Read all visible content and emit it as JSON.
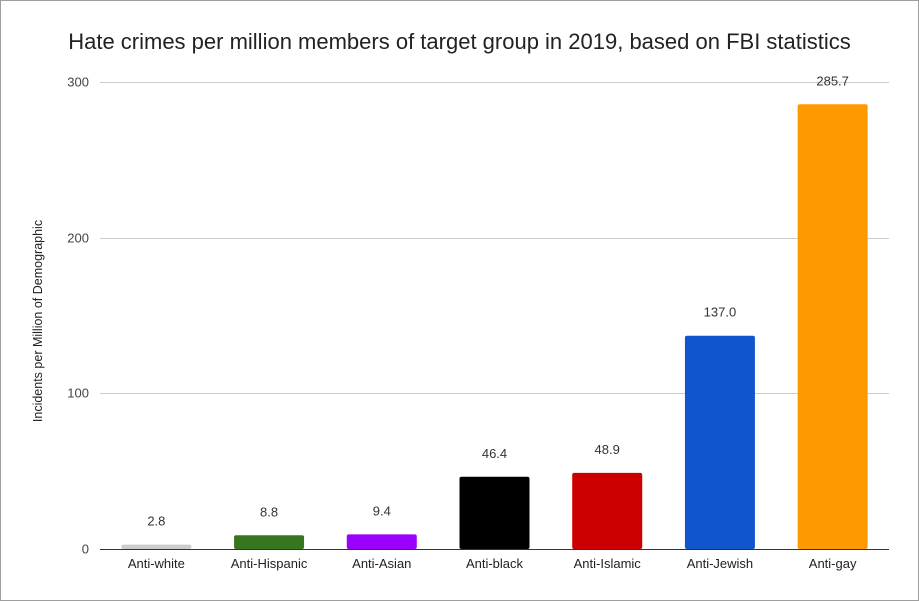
{
  "chart_data": {
    "type": "bar",
    "title": "Hate crimes per million members of target group in 2019, based on FBI statistics",
    "xlabel": "",
    "ylabel": "Incidents per Million of Demographic",
    "ylim": [
      0,
      300
    ],
    "yticks": [
      0,
      100,
      200,
      300
    ],
    "grid": true,
    "legend": "none",
    "categories": [
      "Anti-white",
      "Anti-Hispanic",
      "Anti-Asian",
      "Anti-black",
      "Anti-Islamic",
      "Anti-Jewish",
      "Anti-gay"
    ],
    "values": [
      2.8,
      8.8,
      9.4,
      46.4,
      48.9,
      137.0,
      285.7
    ],
    "data_labels": [
      "2.8",
      "8.8",
      "9.4",
      "46.4",
      "48.9",
      "137.0",
      "285.7"
    ],
    "colors": [
      "#cccccc",
      "#38761d",
      "#9900ff",
      "#000000",
      "#cc0000",
      "#1155cc",
      "#ff9900"
    ]
  }
}
